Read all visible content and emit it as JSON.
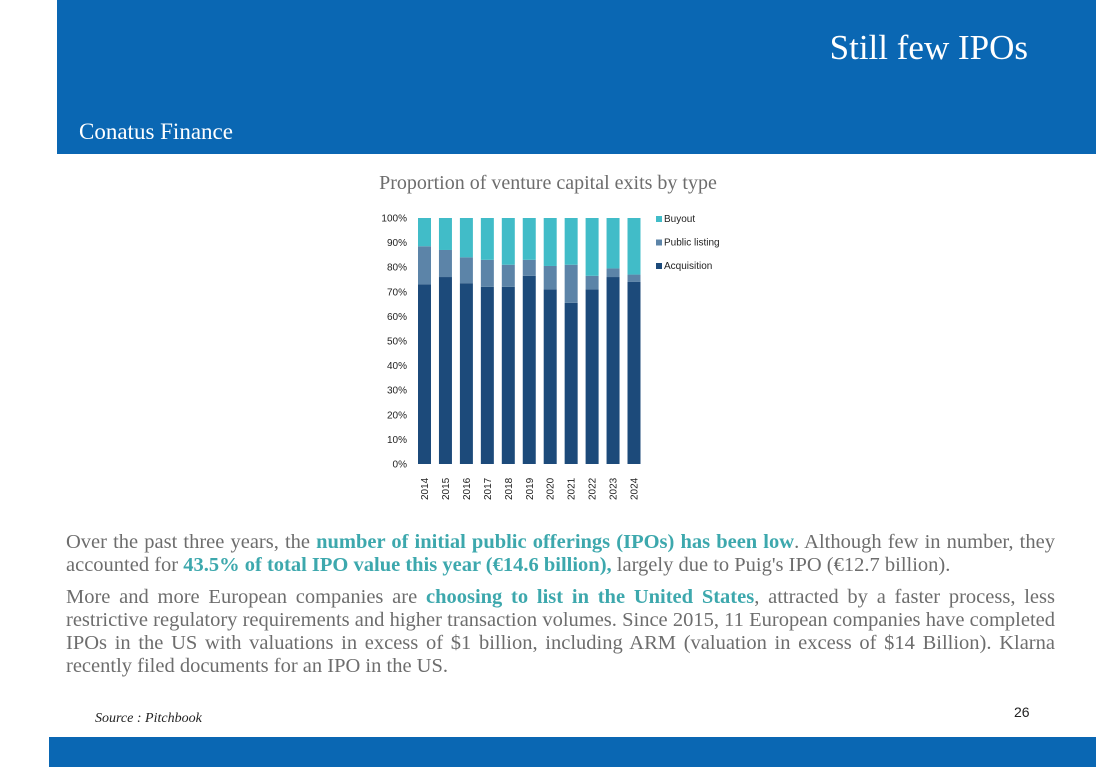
{
  "header": {
    "title": "Still few IPOs",
    "company": "Conatus Finance"
  },
  "chart_title": "Proportion of venture capital exits by type",
  "chart_data": {
    "type": "bar",
    "stacked": true,
    "categories": [
      "2014",
      "2015",
      "2016",
      "2017",
      "2018",
      "2019",
      "2020",
      "2021",
      "2022",
      "2023",
      "2024"
    ],
    "series": [
      {
        "name": "Acquisition",
        "color": "#1c4a7a",
        "values": [
          73,
          76,
          73.5,
          72,
          72,
          76.5,
          71,
          65.5,
          71,
          76,
          74
        ]
      },
      {
        "name": "Public listing",
        "color": "#5c84a8",
        "values": [
          15.5,
          11,
          10.5,
          11,
          9,
          6.5,
          9.5,
          15.5,
          5.5,
          3.5,
          3
        ]
      },
      {
        "name": "Buyout",
        "color": "#41bcc8",
        "values": [
          11.5,
          13,
          16,
          17,
          19,
          17,
          19.5,
          19,
          23.5,
          20.5,
          23
        ]
      }
    ],
    "ylim": [
      0,
      100
    ],
    "y_ticks": [
      "0%",
      "10%",
      "20%",
      "30%",
      "40%",
      "50%",
      "60%",
      "70%",
      "80%",
      "90%",
      "100%"
    ],
    "legend": [
      "Buyout",
      "Public listing",
      "Acquisition"
    ],
    "legend_position": "right"
  },
  "body": {
    "p1_a": "Over the past three years, the ",
    "p1_b": "number of initial public offerings (IPOs) has been low",
    "p1_c": ". Although few in number, they accounted for ",
    "p1_d": "43.5% of total IPO value this year (€14.6 billion),",
    "p1_e": " largely due to Puig's IPO (€12.7 billion).",
    "p2_a": "More and more European companies are ",
    "p2_b": "choosing to list in the United States",
    "p2_c": ", attracted by a faster process, less restrictive regulatory requirements and higher transaction volumes. Since 2015, 11 European companies have completed IPOs in the US with valuations in excess of $1 billion, including ARM (valuation in excess of $14 Billion). Klarna recently filed documents for an IPO in the US."
  },
  "source": "Source : Pitchbook",
  "page_number": "26"
}
